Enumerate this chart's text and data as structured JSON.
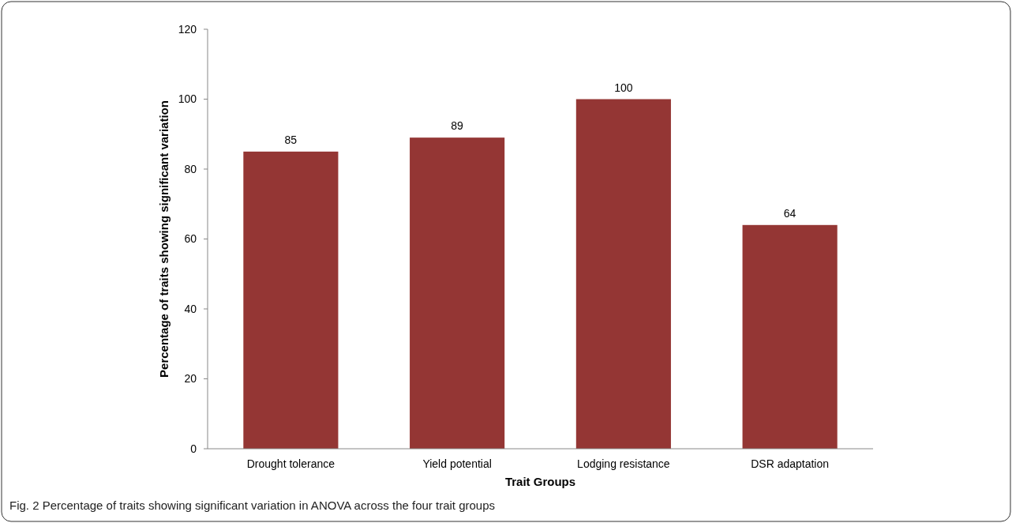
{
  "chart_data": {
    "type": "bar",
    "xlabel": "Trait Groups",
    "ylabel": "Percentage of traits showing significant variation",
    "categories": [
      "Drought tolerance",
      "Yield potential",
      "Lodging resistance",
      "DSR adaptation"
    ],
    "values": [
      85,
      89,
      100,
      64
    ],
    "color": "#943634",
    "ylim": [
      0,
      120
    ],
    "yticks": [
      0,
      20,
      40,
      60,
      80,
      100,
      120
    ],
    "grid": false,
    "data_labels": true,
    "annotations": [
      "Fig. 2 Percentage of traits showing significant variation in ANOVA across the four trait groups"
    ]
  }
}
